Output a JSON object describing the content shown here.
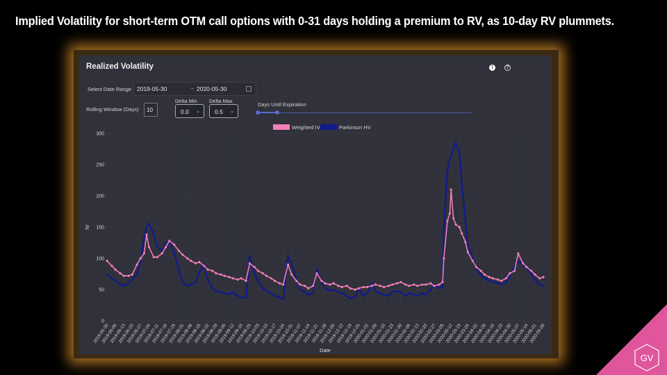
{
  "slide": {
    "title": "Implied Volatility for short-term OTM call options with 0-31 days holding a premium to RV, as 10-day RV plummets.",
    "logo_text": "GV",
    "colors": {
      "background": "#000000",
      "corner_accent": "#e0569c",
      "panel_glow": "#c48028"
    }
  },
  "panel": {
    "title": "Realized Volatility",
    "icons": [
      "alert-icon",
      "help-icon"
    ],
    "date_range": {
      "label": "Select Date Range",
      "start": "2019-05-30",
      "arrow": "→",
      "end": "2020-05-30"
    },
    "rolling_window": {
      "label": "Rolling Window (Days)",
      "value": "10"
    },
    "delta_min": {
      "label": "Delta Min",
      "value": "0.0",
      "chevron": "⌄"
    },
    "delta_max": {
      "label": "Delta Max",
      "value": "0.5",
      "chevron": "⌄"
    },
    "dte_slider": {
      "label": "Days Until Expiration"
    }
  },
  "chart_data": {
    "type": "line",
    "xlabel": "Date",
    "ylabel": "IV",
    "ylim": [
      0,
      300
    ],
    "yticks": [
      0,
      50,
      100,
      150,
      200,
      250,
      300
    ],
    "grid": true,
    "legend_position": "top-center",
    "xticks": [
      "2019-05-30",
      "2019-06-06",
      "2019-06-13",
      "2019-06-20",
      "2019-06-27",
      "2019-07-04",
      "2019-07-11",
      "2019-07-18",
      "2019-07-25",
      "2019-08-01",
      "2019-08-08",
      "2019-08-15",
      "2019-08-22",
      "2019-08-29",
      "2019-09-05",
      "2019-09-12",
      "2019-09-19",
      "2019-09-26",
      "2019-10-03",
      "2019-10-10",
      "2019-10-17",
      "2019-10-24",
      "2019-10-31",
      "2019-11-07",
      "2019-11-14",
      "2019-11-21",
      "2019-11-28",
      "2019-12-05",
      "2019-12-12",
      "2019-12-19",
      "2019-12-26",
      "2020-01-02",
      "2020-01-09",
      "2020-01-16",
      "2020-01-23",
      "2020-01-30",
      "2020-02-06",
      "2020-02-13",
      "2020-02-20",
      "2020-02-27",
      "2020-03-05",
      "2020-03-12",
      "2020-03-19",
      "2020-03-26",
      "2020-04-02",
      "2020-04-09",
      "2020-04-16",
      "2020-04-23",
      "2020-04-30",
      "2020-05-07",
      "2020-05-14",
      "2020-05-21",
      "2020-05-28"
    ],
    "series": [
      {
        "name": "Weighted IV",
        "color": "#f27fb7",
        "points": [
          [
            "2019-05-30",
            96
          ],
          [
            "2019-06-03",
            88
          ],
          [
            "2019-06-06",
            82
          ],
          [
            "2019-06-10",
            76
          ],
          [
            "2019-06-13",
            72
          ],
          [
            "2019-06-17",
            72
          ],
          [
            "2019-06-20",
            74
          ],
          [
            "2019-06-24",
            90
          ],
          [
            "2019-06-27",
            100
          ],
          [
            "2019-06-30",
            108
          ],
          [
            "2019-07-02",
            138
          ],
          [
            "2019-07-04",
            118
          ],
          [
            "2019-07-08",
            102
          ],
          [
            "2019-07-11",
            102
          ],
          [
            "2019-07-15",
            108
          ],
          [
            "2019-07-18",
            118
          ],
          [
            "2019-07-21",
            128
          ],
          [
            "2019-07-25",
            122
          ],
          [
            "2019-07-29",
            112
          ],
          [
            "2019-08-01",
            106
          ],
          [
            "2019-08-05",
            100
          ],
          [
            "2019-08-08",
            96
          ],
          [
            "2019-08-12",
            92
          ],
          [
            "2019-08-15",
            94
          ],
          [
            "2019-08-19",
            88
          ],
          [
            "2019-08-22",
            82
          ],
          [
            "2019-08-26",
            80
          ],
          [
            "2019-08-29",
            76
          ],
          [
            "2019-09-02",
            74
          ],
          [
            "2019-09-05",
            72
          ],
          [
            "2019-09-09",
            70
          ],
          [
            "2019-09-12",
            68
          ],
          [
            "2019-09-16",
            66
          ],
          [
            "2019-09-19",
            68
          ],
          [
            "2019-09-23",
            64
          ],
          [
            "2019-09-26",
            92
          ],
          [
            "2019-09-30",
            86
          ],
          [
            "2019-10-03",
            80
          ],
          [
            "2019-10-07",
            76
          ],
          [
            "2019-10-10",
            72
          ],
          [
            "2019-10-14",
            68
          ],
          [
            "2019-10-17",
            64
          ],
          [
            "2019-10-21",
            60
          ],
          [
            "2019-10-24",
            58
          ],
          [
            "2019-10-28",
            90
          ],
          [
            "2019-10-31",
            74
          ],
          [
            "2019-11-04",
            64
          ],
          [
            "2019-11-07",
            58
          ],
          [
            "2019-11-11",
            56
          ],
          [
            "2019-11-14",
            52
          ],
          [
            "2019-11-18",
            56
          ],
          [
            "2019-11-21",
            76
          ],
          [
            "2019-11-25",
            64
          ],
          [
            "2019-11-28",
            60
          ],
          [
            "2019-12-02",
            58
          ],
          [
            "2019-12-05",
            60
          ],
          [
            "2019-12-09",
            56
          ],
          [
            "2019-12-12",
            54
          ],
          [
            "2019-12-16",
            56
          ],
          [
            "2019-12-19",
            52
          ],
          [
            "2019-12-23",
            50
          ],
          [
            "2019-12-26",
            52
          ],
          [
            "2019-12-30",
            54
          ],
          [
            "2020-01-02",
            54
          ],
          [
            "2020-01-06",
            56
          ],
          [
            "2020-01-09",
            58
          ],
          [
            "2020-01-13",
            56
          ],
          [
            "2020-01-16",
            54
          ],
          [
            "2020-01-20",
            56
          ],
          [
            "2020-01-23",
            58
          ],
          [
            "2020-01-27",
            60
          ],
          [
            "2020-01-30",
            62
          ],
          [
            "2020-02-03",
            58
          ],
          [
            "2020-02-06",
            56
          ],
          [
            "2020-02-10",
            58
          ],
          [
            "2020-02-13",
            56
          ],
          [
            "2020-02-17",
            58
          ],
          [
            "2020-02-20",
            58
          ],
          [
            "2020-02-24",
            60
          ],
          [
            "2020-02-27",
            56
          ],
          [
            "2020-03-02",
            58
          ],
          [
            "2020-03-05",
            62
          ],
          [
            "2020-03-06",
            100
          ],
          [
            "2020-03-09",
            160
          ],
          [
            "2020-03-11",
            172
          ],
          [
            "2020-03-12",
            210
          ],
          [
            "2020-03-14",
            164
          ],
          [
            "2020-03-16",
            154
          ],
          [
            "2020-03-19",
            150
          ],
          [
            "2020-03-21",
            140
          ],
          [
            "2020-03-24",
            126
          ],
          [
            "2020-03-26",
            110
          ],
          [
            "2020-03-30",
            96
          ],
          [
            "2020-04-02",
            86
          ],
          [
            "2020-04-06",
            80
          ],
          [
            "2020-04-09",
            74
          ],
          [
            "2020-04-13",
            70
          ],
          [
            "2020-04-16",
            68
          ],
          [
            "2020-04-20",
            66
          ],
          [
            "2020-04-23",
            64
          ],
          [
            "2020-04-27",
            68
          ],
          [
            "2020-04-30",
            76
          ],
          [
            "2020-05-04",
            80
          ],
          [
            "2020-05-07",
            108
          ],
          [
            "2020-05-11",
            92
          ],
          [
            "2020-05-14",
            86
          ],
          [
            "2020-05-18",
            80
          ],
          [
            "2020-05-21",
            74
          ],
          [
            "2020-05-25",
            68
          ],
          [
            "2020-05-28",
            70
          ]
        ]
      },
      {
        "name": "Parkinson HV",
        "color": "#101a8c",
        "points": [
          [
            "2019-05-30",
            74
          ],
          [
            "2019-06-03",
            68
          ],
          [
            "2019-06-06",
            64
          ],
          [
            "2019-06-10",
            58
          ],
          [
            "2019-06-13",
            56
          ],
          [
            "2019-06-17",
            60
          ],
          [
            "2019-06-20",
            66
          ],
          [
            "2019-06-24",
            74
          ],
          [
            "2019-06-27",
            96
          ],
          [
            "2019-06-30",
            132
          ],
          [
            "2019-07-02",
            150
          ],
          [
            "2019-07-04",
            156
          ],
          [
            "2019-07-08",
            138
          ],
          [
            "2019-07-11",
            118
          ],
          [
            "2019-07-15",
            112
          ],
          [
            "2019-07-18",
            124
          ],
          [
            "2019-07-21",
            128
          ],
          [
            "2019-07-25",
            110
          ],
          [
            "2019-07-29",
            80
          ],
          [
            "2019-08-01",
            62
          ],
          [
            "2019-08-05",
            56
          ],
          [
            "2019-08-08",
            58
          ],
          [
            "2019-08-12",
            62
          ],
          [
            "2019-08-15",
            78
          ],
          [
            "2019-08-19",
            90
          ],
          [
            "2019-08-22",
            66
          ],
          [
            "2019-08-26",
            52
          ],
          [
            "2019-08-29",
            48
          ],
          [
            "2019-09-02",
            46
          ],
          [
            "2019-09-05",
            44
          ],
          [
            "2019-09-09",
            42
          ],
          [
            "2019-09-12",
            46
          ],
          [
            "2019-09-16",
            40
          ],
          [
            "2019-09-19",
            38
          ],
          [
            "2019-09-23",
            36
          ],
          [
            "2019-09-26",
            104
          ],
          [
            "2019-09-30",
            78
          ],
          [
            "2019-10-03",
            62
          ],
          [
            "2019-10-07",
            52
          ],
          [
            "2019-10-10",
            48
          ],
          [
            "2019-10-14",
            44
          ],
          [
            "2019-10-17",
            40
          ],
          [
            "2019-10-21",
            38
          ],
          [
            "2019-10-24",
            34
          ],
          [
            "2019-10-28",
            104
          ],
          [
            "2019-10-31",
            90
          ],
          [
            "2019-11-04",
            66
          ],
          [
            "2019-11-07",
            50
          ],
          [
            "2019-11-11",
            46
          ],
          [
            "2019-11-14",
            42
          ],
          [
            "2019-11-18",
            44
          ],
          [
            "2019-11-21",
            82
          ],
          [
            "2019-11-25",
            62
          ],
          [
            "2019-11-28",
            52
          ],
          [
            "2019-12-02",
            48
          ],
          [
            "2019-12-05",
            50
          ],
          [
            "2019-12-09",
            46
          ],
          [
            "2019-12-12",
            44
          ],
          [
            "2019-12-16",
            40
          ],
          [
            "2019-12-19",
            36
          ],
          [
            "2019-12-23",
            38
          ],
          [
            "2019-12-26",
            52
          ],
          [
            "2019-12-30",
            40
          ],
          [
            "2020-01-02",
            44
          ],
          [
            "2020-01-06",
            60
          ],
          [
            "2020-01-09",
            48
          ],
          [
            "2020-01-13",
            44
          ],
          [
            "2020-01-16",
            42
          ],
          [
            "2020-01-20",
            40
          ],
          [
            "2020-01-23",
            46
          ],
          [
            "2020-01-27",
            48
          ],
          [
            "2020-01-30",
            46
          ],
          [
            "2020-02-03",
            40
          ],
          [
            "2020-02-06",
            44
          ],
          [
            "2020-02-10",
            42
          ],
          [
            "2020-02-13",
            40
          ],
          [
            "2020-02-17",
            44
          ],
          [
            "2020-02-20",
            42
          ],
          [
            "2020-02-24",
            50
          ],
          [
            "2020-02-27",
            58
          ],
          [
            "2020-03-02",
            52
          ],
          [
            "2020-03-05",
            54
          ],
          [
            "2020-03-06",
            150
          ],
          [
            "2020-03-09",
            240
          ],
          [
            "2020-03-11",
            258
          ],
          [
            "2020-03-12",
            264
          ],
          [
            "2020-03-14",
            276
          ],
          [
            "2020-03-16",
            285
          ],
          [
            "2020-03-19",
            270
          ],
          [
            "2020-03-21",
            220
          ],
          [
            "2020-03-24",
            160
          ],
          [
            "2020-03-26",
            120
          ],
          [
            "2020-03-30",
            100
          ],
          [
            "2020-04-02",
            82
          ],
          [
            "2020-04-06",
            74
          ],
          [
            "2020-04-09",
            68
          ],
          [
            "2020-04-13",
            64
          ],
          [
            "2020-04-16",
            62
          ],
          [
            "2020-04-20",
            60
          ],
          [
            "2020-04-23",
            58
          ],
          [
            "2020-04-27",
            62
          ],
          [
            "2020-04-30",
            72
          ],
          [
            "2020-05-04",
            86
          ],
          [
            "2020-05-07",
            96
          ],
          [
            "2020-05-11",
            90
          ],
          [
            "2020-05-14",
            84
          ],
          [
            "2020-05-18",
            76
          ],
          [
            "2020-05-21",
            66
          ],
          [
            "2020-05-25",
            58
          ],
          [
            "2020-05-28",
            56
          ]
        ]
      }
    ]
  }
}
